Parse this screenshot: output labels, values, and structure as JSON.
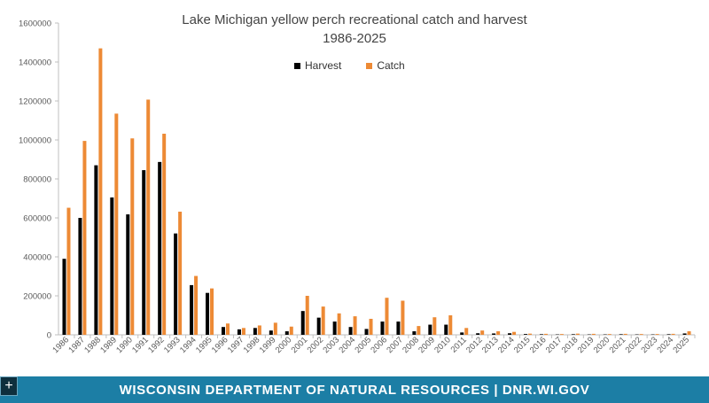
{
  "colors": {
    "harvest": "#000000",
    "catch": "#ed8a35",
    "footer_bg": "#1c7ea5"
  },
  "icons": {
    "plus": "plus-icon"
  },
  "footer": {
    "text": "WISCONSIN DEPARTMENT OF NATURAL RESOURCES | DNR.WI.GOV"
  },
  "plus_button": {
    "label": "+"
  },
  "chart_data": {
    "type": "bar",
    "title": "Lake Michigan yellow perch recreational catch and harvest",
    "subtitle": "1986-2025",
    "xlabel": "",
    "ylabel": "",
    "ylim": [
      0,
      1600000
    ],
    "yticks": [
      0,
      200000,
      400000,
      600000,
      800000,
      1000000,
      1200000,
      1400000,
      1600000
    ],
    "legend_position": "top-center",
    "grid": false,
    "categories": [
      "1986",
      "1987",
      "1988",
      "1989",
      "1990",
      "1991",
      "1992",
      "1993",
      "1994",
      "1995",
      "1996",
      "1997",
      "1998",
      "1999",
      "2000",
      "2001",
      "2002",
      "2003",
      "2004",
      "2005",
      "2006",
      "2007",
      "2008",
      "2009",
      "2010",
      "2011",
      "2012",
      "2013",
      "2014",
      "2015",
      "2016",
      "2017",
      "2018",
      "2019",
      "2020",
      "2021",
      "2022",
      "2023",
      "2024",
      "2025"
    ],
    "series": [
      {
        "name": "Harvest",
        "values": [
          390000,
          600000,
          870000,
          705000,
          618000,
          845000,
          887000,
          520000,
          255000,
          215000,
          40000,
          28000,
          35000,
          22000,
          18000,
          122000,
          88000,
          68000,
          40000,
          30000,
          68000,
          68000,
          18000,
          52000,
          52000,
          12000,
          8000,
          7000,
          8000,
          4000,
          3000,
          2000,
          3000,
          2000,
          2000,
          3000,
          2000,
          2000,
          3000,
          7000
        ]
      },
      {
        "name": "Catch",
        "values": [
          652000,
          995000,
          1470000,
          1135000,
          1008000,
          1207000,
          1032000,
          632000,
          302000,
          238000,
          58000,
          35000,
          48000,
          62000,
          42000,
          200000,
          145000,
          110000,
          95000,
          82000,
          190000,
          175000,
          45000,
          90000,
          100000,
          35000,
          22000,
          18000,
          15000,
          6000,
          5000,
          4000,
          6000,
          5000,
          4000,
          5000,
          4000,
          4000,
          5000,
          18000
        ]
      }
    ]
  }
}
